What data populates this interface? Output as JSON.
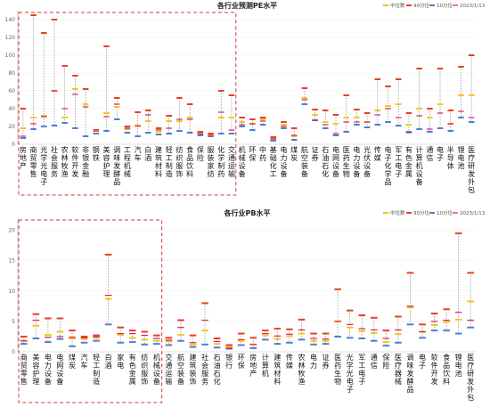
{
  "legend": {
    "median": "中位数",
    "p90": "90分位",
    "p10": "10分位",
    "current": "2023/1/13",
    "colors": {
      "median": "#f5c518",
      "p90": "#e8402a",
      "p10": "#4a7fd4",
      "current": "#d81e5b",
      "range": "#888888",
      "highlight": "#e03030"
    }
  },
  "chart_data": [
    {
      "type": "range-marker",
      "title": "各行业预测PE水平",
      "ylim": [
        0,
        150
      ],
      "yticks": [
        0,
        20,
        40,
        60,
        80,
        100,
        120,
        140
      ],
      "highlight_categories": [
        "房地产",
        "商贸零售",
        "光学光电子",
        "社会服务",
        "农林牧渔",
        "软件开发",
        "非银金融",
        "钢铁",
        "美容护理",
        "调味发酵品",
        "工程机械",
        "汽车",
        "白酒",
        "建筑材料",
        "轻工制造",
        "纺织服饰",
        "食品饮料",
        "保险",
        "服装家纺",
        "化学制药",
        "交通运输"
      ],
      "categories": [
        "房地产",
        "商贸零售",
        "光学光电子",
        "社会服务",
        "农林牧渔",
        "软件开发",
        "非银金融",
        "钢铁",
        "美容护理",
        "调味发酵品",
        "工程机械",
        "汽车",
        "白酒",
        "建筑材料",
        "轻工制造",
        "纺织服饰",
        "食品饮料",
        "保险",
        "服装家纺",
        "化学制药",
        "交通运输",
        "机械设备",
        "环保",
        "中药",
        "基础化工",
        "电力设备",
        "煤炭",
        "航空装备",
        "证券",
        "石油石化",
        "电网设备",
        "医药生物",
        "电力设备",
        "光伏设备",
        "传媒",
        "电子化学品",
        "军工电子",
        "有色金属",
        "计算机设备",
        "通信",
        "电子",
        "半导体",
        "锂电池",
        "医疗研发外包"
      ],
      "series": [
        {
          "name": "90分位",
          "values": [
            40,
            145,
            125,
            140,
            88,
            77,
            62,
            16,
            110,
            52,
            20,
            36,
            38,
            18,
            32,
            52,
            45,
            14,
            12,
            60,
            55,
            30,
            28,
            30,
            8,
            25,
            18,
            63,
            39,
            38,
            33,
            55,
            39,
            35,
            73,
            65,
            73,
            35,
            85,
            40,
            85,
            38,
            87,
            100
          ]
        },
        {
          "name": "10分位",
          "values": [
            7,
            17,
            20,
            21,
            24,
            18,
            9,
            12,
            15,
            28,
            13,
            9,
            13,
            11,
            12,
            15,
            13,
            10,
            9,
            12,
            12,
            20,
            16,
            22,
            4,
            18,
            5,
            45,
            27,
            18,
            10,
            14,
            22,
            19,
            22,
            25,
            21,
            14,
            17,
            14,
            18,
            15,
            30,
            25
          ]
        },
        {
          "name": "中位数",
          "values": [
            18,
            30,
            32,
            60,
            30,
            62,
            45,
            15,
            35,
            42,
            17,
            20,
            26,
            14,
            26,
            26,
            30,
            12,
            10,
            30,
            30,
            25,
            23,
            28,
            6,
            22,
            9,
            52,
            33,
            25,
            23,
            30,
            30,
            25,
            38,
            43,
            45,
            22,
            40,
            30,
            45,
            23,
            55,
            55
          ]
        },
        {
          "name": "2023/1/13",
          "values": [
            9,
            23,
            31,
            60,
            40,
            56,
            42,
            15,
            31,
            45,
            18,
            21,
            33,
            16,
            18,
            28,
            28,
            12,
            10,
            36,
            16,
            22,
            23,
            26,
            6,
            20,
            10,
            50,
            27,
            22,
            12,
            25,
            25,
            25,
            33,
            40,
            30,
            13,
            32,
            17,
            35,
            23,
            37,
            30
          ]
        }
      ]
    },
    {
      "type": "range-marker",
      "title": "各行业PB水平",
      "ylim": [
        0,
        22
      ],
      "yticks": [
        0,
        5,
        10,
        15,
        20
      ],
      "highlight_categories": [
        "商贸零售",
        "美容护理",
        "电力设备",
        "电网设备",
        "煤炭",
        "汽车",
        "轻工制造",
        "白酒",
        "家电",
        "有色金属",
        "纺织服饰",
        "机械设备"
      ],
      "categories": [
        "商贸零售",
        "美容护理",
        "电力设备",
        "电网设备",
        "煤炭",
        "汽车",
        "轻工制造",
        "白酒",
        "家电",
        "有色金属",
        "纺织服饰",
        "机械设备",
        "交通运输",
        "航空装备",
        "建筑装饰",
        "社会服务",
        "石油石化",
        "银行",
        "环保",
        "房地产",
        "计算机",
        "建筑材料",
        "传媒",
        "农林牧渔",
        "电力",
        "证券",
        "医药生物",
        "光学光电子",
        "军工电子",
        "通信",
        "保险",
        "医疗器械",
        "调味发酵品",
        "电子",
        "软件开发",
        "食品饮料",
        "锂电池",
        "医疗研发外包"
      ],
      "series": [
        {
          "name": "90分位",
          "values": [
            2.5,
            6.2,
            5.5,
            5.5,
            3.5,
            2.5,
            2.7,
            16.0,
            4.0,
            3.5,
            3.3,
            2.7,
            2.3,
            5.2,
            2.7,
            8.0,
            2.2,
            1.1,
            3.0,
            2.3,
            3.5,
            3.8,
            3.7,
            5.3,
            3.0,
            3.0,
            10.3,
            6.8,
            6.0,
            5.6,
            3.5,
            5.8,
            13.0,
            4.5,
            6.3,
            7.0,
            19.5,
            13.0
          ]
        },
        {
          "name": "10分位",
          "values": [
            1.3,
            2.2,
            1.6,
            2.1,
            0.9,
            1.5,
            1.8,
            4.5,
            1.5,
            1.6,
            1.2,
            1.3,
            1.1,
            1.8,
            0.8,
            1.2,
            0.7,
            0.5,
            1.1,
            0.6,
            2.0,
            1.3,
            1.5,
            2.0,
            1.2,
            1.3,
            2.5,
            2.3,
            2.2,
            1.8,
            1.0,
            1.5,
            4.5,
            2.3,
            3.5,
            3.5,
            3.0,
            4.0
          ]
        },
        {
          "name": "中位数",
          "values": [
            1.8,
            4.3,
            2.8,
            3.3,
            2.2,
            2.1,
            2.3,
            8.7,
            2.8,
            2.3,
            2.0,
            1.8,
            1.7,
            2.8,
            1.2,
            3.5,
            1.3,
            0.8,
            1.8,
            1.2,
            2.7,
            2.1,
            2.6,
            3.0,
            1.8,
            1.8,
            5.0,
            4.0,
            3.4,
            3.1,
            1.6,
            2.9,
            7.3,
            3.3,
            4.4,
            4.9,
            5.3,
            8.3
          ]
        },
        {
          "name": "2023/1/13",
          "values": [
            1.8,
            5.2,
            2.4,
            2.5,
            2.4,
            2.3,
            2.5,
            9.3,
            3.0,
            3.0,
            2.7,
            2.2,
            1.9,
            4.0,
            1.5,
            5.2,
            1.7,
            0.6,
            2.0,
            1.2,
            3.0,
            2.6,
            2.9,
            3.6,
            2.2,
            2.1,
            5.0,
            4.5,
            3.8,
            3.6,
            2.2,
            3.6,
            7.5,
            3.3,
            5.0,
            5.2,
            6.5,
            5.2
          ]
        }
      ]
    }
  ]
}
